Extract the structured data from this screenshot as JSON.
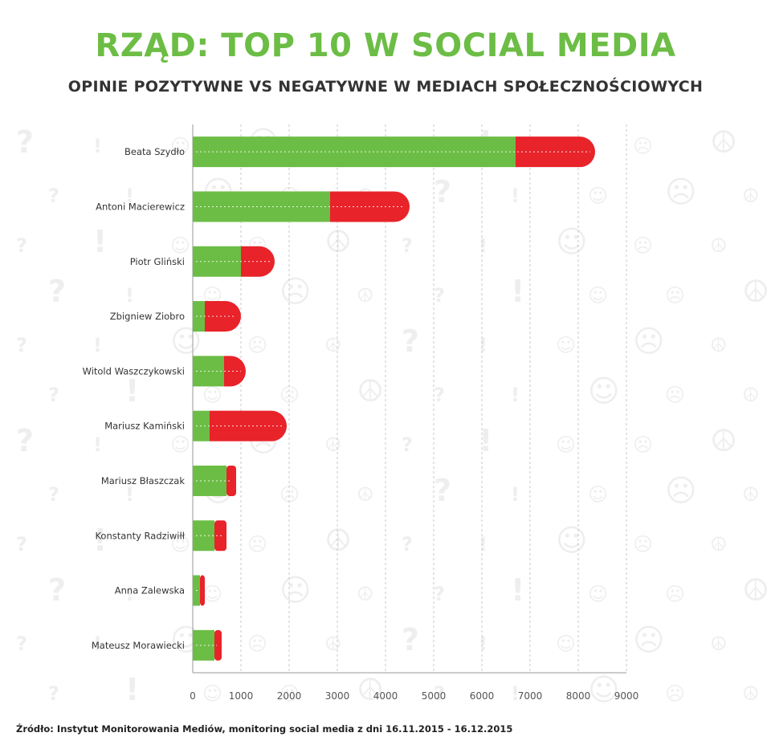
{
  "title": "RZĄD: TOP 10 W SOCIAL MEDIA",
  "subtitle": "OPINIE POZYTYWNE VS NEGATYWNE W MEDIACH SPOŁECZNOŚCIOWYCH",
  "source": "Źródło: Instytut Monitorowania Mediów, monitoring social media z dni 16.11.2015 - 16.12.2015",
  "colors": {
    "positive": "#6cbd45",
    "negative": "#e8232a",
    "title": "#6cbd45",
    "text": "#333333"
  },
  "chart_data": {
    "type": "bar",
    "orientation": "horizontal",
    "stacked": true,
    "categories": [
      "Beata Szydło",
      "Antoni Macierewicz",
      "Piotr Gliński",
      "Zbigniew Ziobro",
      "Witold Waszczykowski",
      "Mariusz Kamiński",
      "Mariusz Błaszczak",
      "Konstanty  Radziwiłł",
      "Anna Zalewska",
      "Mateusz Morawiecki"
    ],
    "series": [
      {
        "values": [
          6700,
          2850,
          1000,
          250,
          650,
          350,
          700,
          450,
          150,
          450
        ],
        "color": "#6cbd45"
      },
      {
        "values": [
          1650,
          1650,
          700,
          750,
          450,
          1600,
          200,
          250,
          100,
          150
        ],
        "color": "#e8232a"
      }
    ],
    "xlim": [
      0,
      9000
    ],
    "xticks": [
      0,
      1000,
      2000,
      3000,
      4000,
      5000,
      6000,
      7000,
      8000,
      9000
    ],
    "grid": "vertical dashed"
  }
}
